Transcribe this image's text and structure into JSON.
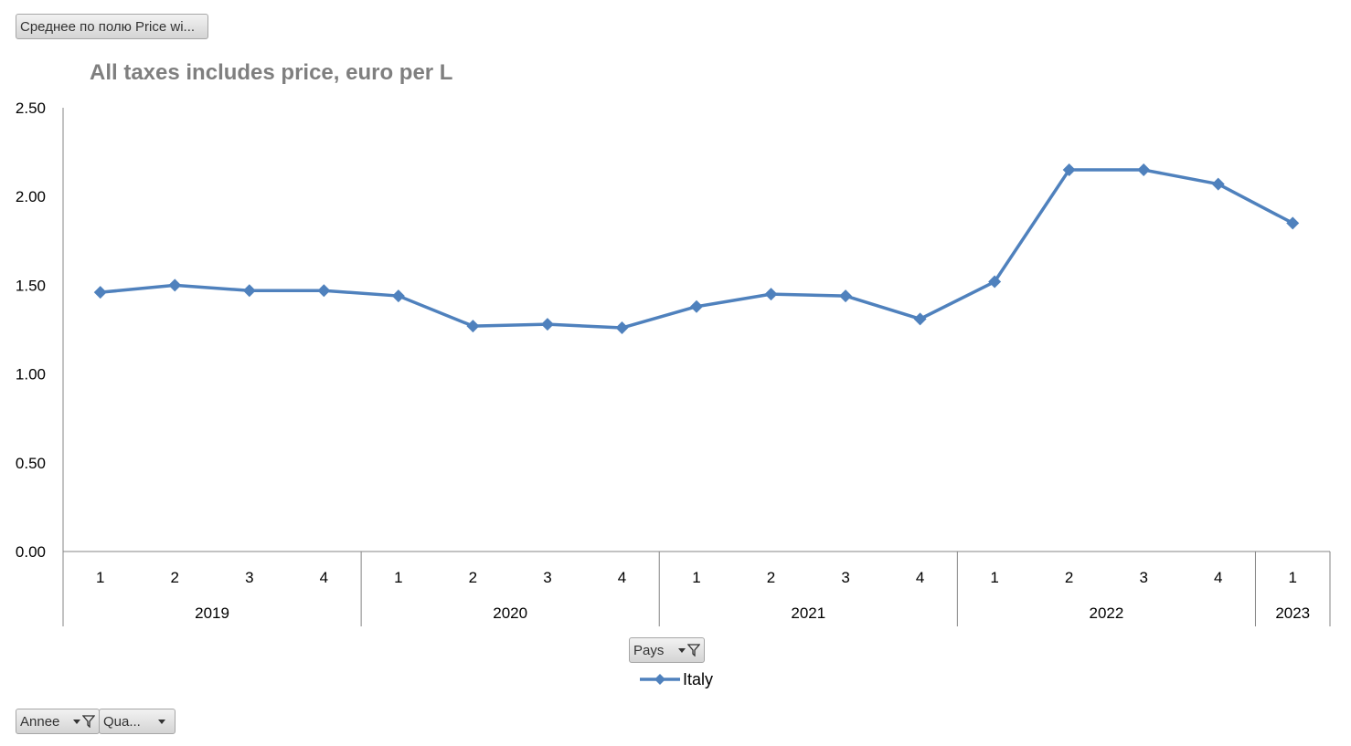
{
  "field_buttons": {
    "value_field": "Среднее по полю Price wi...",
    "legend_field": "Pays",
    "axis_field_1": "Annee",
    "axis_field_2": "Qua..."
  },
  "chart_data": {
    "type": "line",
    "title": "All taxes includes price, euro per L",
    "xlabel": "",
    "ylabel": "",
    "ylim": [
      0,
      2.5
    ],
    "y_ticks": [
      "0.00",
      "0.50",
      "1.00",
      "1.50",
      "2.00",
      "2.50"
    ],
    "grid": false,
    "legend_position": "bottom",
    "groups": [
      {
        "label": "2019",
        "categories": [
          "1",
          "2",
          "3",
          "4"
        ]
      },
      {
        "label": "2020",
        "categories": [
          "1",
          "2",
          "3",
          "4"
        ]
      },
      {
        "label": "2021",
        "categories": [
          "1",
          "2",
          "3",
          "4"
        ]
      },
      {
        "label": "2022",
        "categories": [
          "1",
          "2",
          "3",
          "4"
        ]
      },
      {
        "label": "2023",
        "categories": [
          "1"
        ]
      }
    ],
    "series": [
      {
        "name": "Italy",
        "color": "#4f81bd",
        "values": [
          1.46,
          1.5,
          1.47,
          1.47,
          1.44,
          1.27,
          1.28,
          1.26,
          1.38,
          1.45,
          1.44,
          1.31,
          1.52,
          2.15,
          2.15,
          2.07,
          1.85
        ]
      }
    ]
  }
}
